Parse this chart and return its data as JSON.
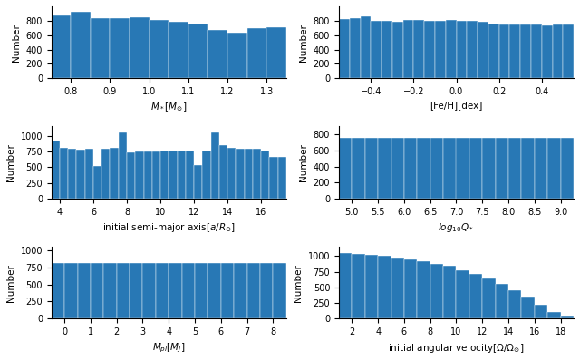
{
  "bar_color": "#2878b5",
  "plots": [
    {
      "xlabel": "$M_*[M_{\\odot}]$",
      "ylabel": "Number",
      "xlim": [
        0.75,
        1.35
      ],
      "ylim": [
        0,
        1000
      ],
      "bin_edges": [
        0.75,
        0.8,
        0.85,
        0.9,
        0.95,
        1.0,
        1.05,
        1.1,
        1.15,
        1.2,
        1.25,
        1.3,
        1.35
      ],
      "bin_heights": [
        870,
        930,
        840,
        840,
        850,
        810,
        780,
        760,
        670,
        640,
        700,
        710
      ],
      "xticks": [
        0.8,
        0.9,
        1.0,
        1.1,
        1.2,
        1.3
      ],
      "yticks": [
        0,
        200,
        400,
        600,
        800
      ]
    },
    {
      "xlabel": "[Fe/H][dex]",
      "ylabel": "Number",
      "xlim": [
        -0.55,
        0.55
      ],
      "ylim": [
        0,
        1000
      ],
      "bin_edges": [
        -0.55,
        -0.5,
        -0.45,
        -0.4,
        -0.35,
        -0.3,
        -0.25,
        -0.2,
        -0.15,
        -0.1,
        -0.05,
        0.0,
        0.05,
        0.1,
        0.15,
        0.2,
        0.25,
        0.3,
        0.35,
        0.4,
        0.45,
        0.5,
        0.55
      ],
      "bin_heights": [
        820,
        840,
        860,
        800,
        800,
        780,
        810,
        810,
        800,
        800,
        810,
        800,
        800,
        790,
        760,
        750,
        750,
        750,
        745,
        740,
        750,
        750
      ],
      "xticks": [
        -0.4,
        -0.2,
        0.0,
        0.2,
        0.4
      ],
      "yticks": [
        0,
        200,
        400,
        600,
        800
      ]
    },
    {
      "xlabel": "initial semi-major axis[$a/R_{\\odot}$]",
      "ylabel": "Number",
      "xlim": [
        3.5,
        17.5
      ],
      "ylim": [
        0,
        1150
      ],
      "bin_edges": [
        3.5,
        4.0,
        4.5,
        5.0,
        5.5,
        6.0,
        6.5,
        7.0,
        7.5,
        8.0,
        8.5,
        9.0,
        9.5,
        10.0,
        10.5,
        11.0,
        11.5,
        12.0,
        12.5,
        13.0,
        13.5,
        14.0,
        14.5,
        15.0,
        15.5,
        16.0,
        16.5,
        17.0,
        17.5
      ],
      "bin_heights": [
        930,
        810,
        800,
        780,
        800,
        520,
        800,
        810,
        1060,
        730,
        750,
        750,
        750,
        760,
        770,
        760,
        760,
        540,
        760,
        1050,
        850,
        810,
        800,
        800,
        800,
        760,
        670,
        670
      ],
      "xticks": [
        4,
        6,
        8,
        10,
        12,
        14,
        16
      ],
      "yticks": [
        0,
        250,
        500,
        750,
        1000
      ]
    },
    {
      "xlabel": "$log_{10}Q_*$",
      "ylabel": "Number",
      "xlim": [
        4.75,
        9.25
      ],
      "ylim": [
        0,
        900
      ],
      "bin_edges": [
        4.75,
        5.0,
        5.25,
        5.5,
        5.75,
        6.0,
        6.25,
        6.5,
        6.75,
        7.0,
        7.25,
        7.5,
        7.75,
        8.0,
        8.25,
        8.5,
        8.75,
        9.0,
        9.25
      ],
      "bin_heights": [
        760,
        760,
        760,
        760,
        760,
        760,
        760,
        760,
        760,
        760,
        760,
        760,
        760,
        760,
        760,
        760,
        760,
        760
      ],
      "xticks": [
        5.0,
        5.5,
        6.0,
        6.5,
        7.0,
        7.5,
        8.0,
        8.5,
        9.0
      ],
      "yticks": [
        0,
        200,
        400,
        600,
        800
      ]
    },
    {
      "xlabel": "$M_{pl}[M_J]$",
      "ylabel": "Number",
      "xlim": [
        -0.5,
        8.5
      ],
      "ylim": [
        0,
        1050
      ],
      "bin_edges": [
        -0.5,
        0.0,
        0.5,
        1.0,
        1.5,
        2.0,
        2.5,
        3.0,
        3.5,
        4.0,
        4.5,
        5.0,
        5.5,
        6.0,
        6.5,
        7.0,
        7.5,
        8.0,
        8.5
      ],
      "bin_heights": [
        810,
        810,
        810,
        810,
        810,
        810,
        810,
        810,
        810,
        810,
        810,
        810,
        810,
        810,
        810,
        810,
        810,
        810
      ],
      "xticks": [
        0,
        1,
        2,
        3,
        4,
        5,
        6,
        7,
        8
      ],
      "yticks": [
        0,
        250,
        500,
        750,
        1000
      ]
    },
    {
      "xlabel": "initial angular velocity[$\\Omega/\\Omega_{\\odot}$]",
      "ylabel": "Number",
      "xlim": [
        1.0,
        19.0
      ],
      "ylim": [
        0,
        1150
      ],
      "bin_edges": [
        1.0,
        2.0,
        3.0,
        4.0,
        5.0,
        6.0,
        7.0,
        8.0,
        9.0,
        10.0,
        11.0,
        12.0,
        13.0,
        14.0,
        15.0,
        16.0,
        17.0,
        18.0,
        19.0
      ],
      "bin_heights": [
        1050,
        1040,
        1020,
        1000,
        980,
        950,
        920,
        880,
        840,
        780,
        720,
        640,
        560,
        460,
        350,
        220,
        110,
        50
      ],
      "xticks": [
        2,
        4,
        6,
        8,
        10,
        12,
        14,
        16,
        18
      ],
      "yticks": [
        0,
        250,
        500,
        750,
        1000
      ]
    }
  ]
}
